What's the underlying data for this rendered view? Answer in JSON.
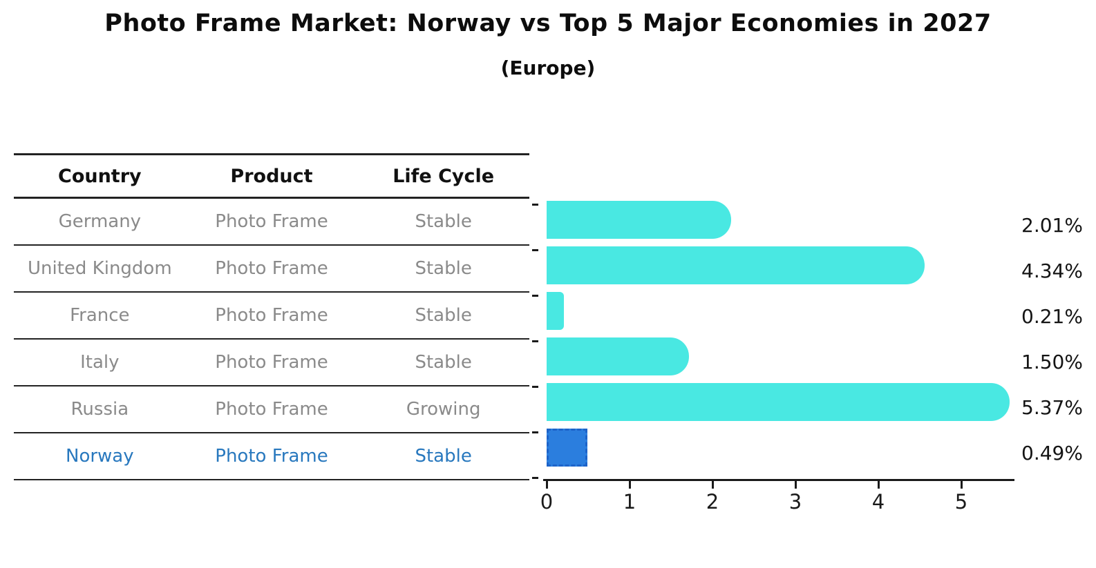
{
  "title": "Photo Frame Market: Norway vs Top 5 Major Economies in 2027",
  "subtitle": "(Europe)",
  "table": {
    "headers": [
      "Country",
      "Product",
      "Life Cycle"
    ],
    "rows": [
      {
        "country": "Germany",
        "product": "Photo Frame",
        "life_cycle": "Stable",
        "share": "2.01%"
      },
      {
        "country": "United Kingdom",
        "product": "Photo Frame",
        "life_cycle": "Stable",
        "share": "4.34%"
      },
      {
        "country": "France",
        "product": "Photo Frame",
        "life_cycle": "Stable",
        "share": "0.21%"
      },
      {
        "country": "Italy",
        "product": "Photo Frame",
        "life_cycle": "Stable",
        "share": "1.50%"
      },
      {
        "country": "Russia",
        "product": "Photo Frame",
        "life_cycle": "Growing",
        "share": "5.37%"
      },
      {
        "country": "Norway",
        "product": "Photo Frame",
        "life_cycle": "Stable",
        "share": "0.49%"
      }
    ]
  },
  "chart_data": {
    "type": "bar",
    "orientation": "horizontal",
    "title": "Photo Frame Market: Norway vs Top 5 Major Economies in 2027",
    "subtitle": "(Europe)",
    "categories": [
      "Germany",
      "United Kingdom",
      "France",
      "Italy",
      "Russia",
      "Norway"
    ],
    "values": [
      2.01,
      4.34,
      0.21,
      1.5,
      5.37,
      0.49
    ],
    "value_labels": [
      "2.01%",
      "4.34%",
      "0.21%",
      "1.50%",
      "5.37%",
      "0.49%"
    ],
    "unit": "percent",
    "xlabel": "",
    "ylabel": "",
    "xlim": [
      0,
      5.6
    ],
    "xticks": [
      0,
      1,
      2,
      3,
      4,
      5
    ],
    "grid": false,
    "legend": false,
    "highlight_index": 5,
    "colors": {
      "bar": "#49E8E2",
      "highlight_fill": "#2B7EDE",
      "highlight_border": "#1D63C9",
      "row_text": "#8a8a8a",
      "highlight_text": "#2878BE",
      "axis": "#1a1a1a",
      "value_label_text": "#141414"
    }
  }
}
